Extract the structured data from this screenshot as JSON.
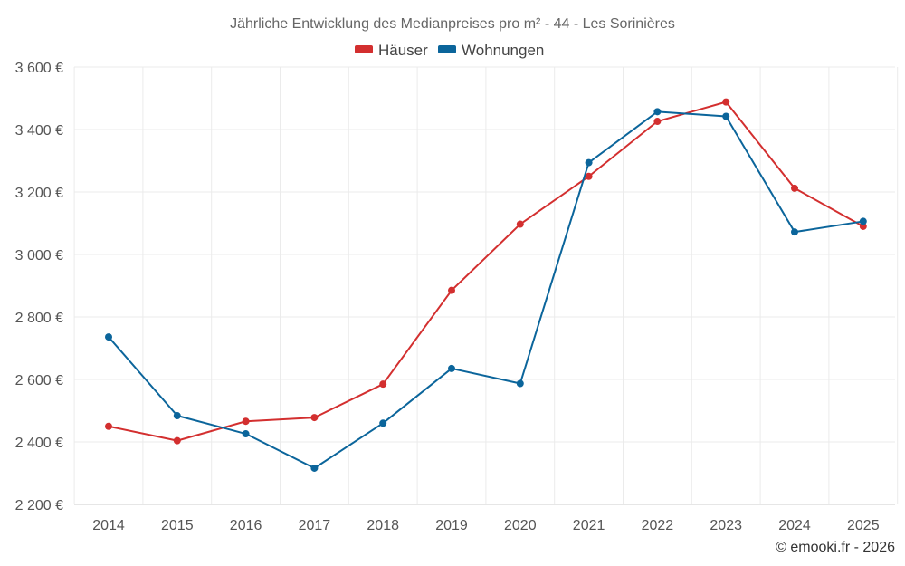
{
  "chart_data": {
    "type": "line",
    "title": "Jährliche Entwicklung des Medianpreises pro m² - 44 - Les Sorinières",
    "categories": [
      "2014",
      "2015",
      "2016",
      "2017",
      "2018",
      "2019",
      "2020",
      "2021",
      "2022",
      "2023",
      "2024",
      "2025"
    ],
    "series": [
      {
        "name": "Häuser",
        "color": "#d32f2f",
        "values": [
          2450,
          2404,
          2466,
          2478,
          2585,
          2885,
          3097,
          3250,
          3426,
          3488,
          3212,
          3090
        ]
      },
      {
        "name": "Wohnungen",
        "color": "#0b659b",
        "values": [
          2736,
          2484,
          2426,
          2316,
          2460,
          2635,
          2587,
          3294,
          3457,
          3442,
          3072,
          3106
        ]
      }
    ],
    "ylim": [
      2200,
      3600
    ],
    "yticks": [
      2200,
      2400,
      2600,
      2800,
      3000,
      3200,
      3400,
      3600
    ],
    "ytick_labels": [
      "2 200 €",
      "2 400 €",
      "2 600 €",
      "2 800 €",
      "3 000 €",
      "3 200 €",
      "3 400 €",
      "3 600 €"
    ],
    "xlabel": "",
    "ylabel": "",
    "grid": true,
    "legend_position": "top-center",
    "credit": "© emooki.fr - 2026"
  }
}
